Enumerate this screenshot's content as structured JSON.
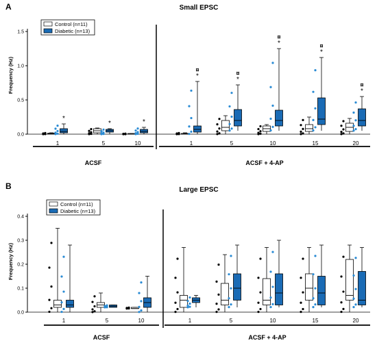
{
  "chart_data": [
    {
      "panel": "A",
      "title": "Small EPSC",
      "type": "box",
      "ylabel": "Frequency (Hz)",
      "ylim": [
        0,
        1.5
      ],
      "yticks": [
        0.0,
        0.5,
        1.0,
        1.5
      ],
      "ytick_labels": [
        "0.0",
        "0.5",
        "1.0",
        "1.5"
      ],
      "series": [
        {
          "name": "Control",
          "n_label": "(n=11)",
          "color": "#ffffff",
          "legend": "Control (n=11)"
        },
        {
          "name": "Diabetic",
          "n_label": "(n=13)",
          "color": "#1a6bb5",
          "legend": "Diabetic (n=13)"
        }
      ],
      "groups": [
        {
          "label": "ACSF",
          "categories": [
            "1",
            "5",
            "10"
          ]
        },
        {
          "label": "ACSF + 4-AP",
          "categories": [
            "1",
            "5",
            "10",
            "15",
            "20"
          ]
        }
      ],
      "boxes": [
        {
          "group": 0,
          "cat": 0,
          "series": "Control",
          "min": 0,
          "q1": 0,
          "med": 0.01,
          "q3": 0.015,
          "max": 0.02
        },
        {
          "group": 0,
          "cat": 0,
          "series": "Diabetic",
          "min": 0,
          "q1": 0.02,
          "med": 0.04,
          "q3": 0.08,
          "max": 0.15,
          "sig": "*"
        },
        {
          "group": 0,
          "cat": 1,
          "series": "Control",
          "min": 0,
          "q1": 0.02,
          "med": 0.05,
          "q3": 0.08,
          "max": 0.09
        },
        {
          "group": 0,
          "cat": 1,
          "series": "Diabetic",
          "min": 0,
          "q1": 0.03,
          "med": 0.05,
          "q3": 0.07,
          "max": 0.08,
          "sig": "*"
        },
        {
          "group": 0,
          "cat": 2,
          "series": "Control",
          "min": 0,
          "q1": 0,
          "med": 0,
          "q3": 0.01,
          "max": 0.01
        },
        {
          "group": 0,
          "cat": 2,
          "series": "Diabetic",
          "min": 0,
          "q1": 0.02,
          "med": 0.04,
          "q3": 0.07,
          "max": 0.1,
          "sig": "*"
        },
        {
          "group": 1,
          "cat": 0,
          "series": "Control",
          "min": 0,
          "q1": 0,
          "med": 0.01,
          "q3": 0.01,
          "max": 0.02
        },
        {
          "group": 1,
          "cat": 0,
          "series": "Diabetic",
          "min": 0,
          "q1": 0.03,
          "med": 0.07,
          "q3": 0.12,
          "max": 0.77,
          "sig": "*",
          "sig2": "¤"
        },
        {
          "group": 1,
          "cat": 1,
          "series": "Control",
          "min": 0,
          "q1": 0.05,
          "med": 0.1,
          "q3": 0.2,
          "max": 0.27
        },
        {
          "group": 1,
          "cat": 1,
          "series": "Diabetic",
          "min": 0.05,
          "q1": 0.12,
          "med": 0.2,
          "q3": 0.36,
          "max": 0.72,
          "sig": "*",
          "sig2": "¤"
        },
        {
          "group": 1,
          "cat": 2,
          "series": "Control",
          "min": 0,
          "q1": 0.04,
          "med": 0.08,
          "q3": 0.12,
          "max": 0.14
        },
        {
          "group": 1,
          "cat": 2,
          "series": "Diabetic",
          "min": 0.05,
          "q1": 0.12,
          "med": 0.2,
          "q3": 0.35,
          "max": 1.25,
          "sig": "*",
          "sig2": "¤"
        },
        {
          "group": 1,
          "cat": 3,
          "series": "Control",
          "min": 0,
          "q1": 0.04,
          "med": 0.08,
          "q3": 0.14,
          "max": 0.25
        },
        {
          "group": 1,
          "cat": 3,
          "series": "Diabetic",
          "min": 0.05,
          "q1": 0.14,
          "med": 0.22,
          "q3": 0.53,
          "max": 1.12,
          "sig": "*",
          "sig2": "¤"
        },
        {
          "group": 1,
          "cat": 4,
          "series": "Control",
          "min": 0,
          "q1": 0.04,
          "med": 0.1,
          "q3": 0.16,
          "max": 0.23
        },
        {
          "group": 1,
          "cat": 4,
          "series": "Diabetic",
          "min": 0.05,
          "q1": 0.12,
          "med": 0.2,
          "q3": 0.37,
          "max": 0.55,
          "sig": "*",
          "sig2": "¤"
        }
      ]
    },
    {
      "panel": "B",
      "title": "Large EPSC",
      "type": "box",
      "ylabel": "Frequency (Hz)",
      "ylim": [
        0,
        0.4
      ],
      "yticks": [
        0.0,
        0.1,
        0.2,
        0.3,
        0.4
      ],
      "ytick_labels": [
        "0.0",
        "0.1",
        "0.2",
        "0.3",
        "0.4"
      ],
      "series": [
        {
          "name": "Control",
          "n_label": "(n=11)",
          "color": "#ffffff",
          "legend": "Control (n=11)"
        },
        {
          "name": "Diabetic",
          "n_label": "(n=13)",
          "color": "#1a6bb5",
          "legend": "Diabetic (n=13)"
        }
      ],
      "groups": [
        {
          "label": "ACSF",
          "categories": [
            "1",
            "5",
            "10"
          ]
        },
        {
          "label": "ACSF + 4-AP",
          "categories": [
            "1",
            "5",
            "10",
            "15",
            "20"
          ]
        }
      ],
      "boxes": [
        {
          "group": 0,
          "cat": 0,
          "series": "Control",
          "min": 0,
          "q1": 0.02,
          "med": 0.03,
          "q3": 0.05,
          "max": 0.35
        },
        {
          "group": 0,
          "cat": 0,
          "series": "Diabetic",
          "min": 0,
          "q1": 0.02,
          "med": 0.03,
          "q3": 0.05,
          "max": 0.28
        },
        {
          "group": 0,
          "cat": 1,
          "series": "Control",
          "min": 0,
          "q1": 0.02,
          "med": 0.03,
          "q3": 0.04,
          "max": 0.08
        },
        {
          "group": 0,
          "cat": 1,
          "series": "Diabetic",
          "min": 0.02,
          "q1": 0.02,
          "med": 0.025,
          "q3": 0.03,
          "max": 0.03
        },
        {
          "group": 0,
          "cat": 2,
          "series": "Control",
          "min": 0.015,
          "q1": 0.015,
          "med": 0.015,
          "q3": 0.02,
          "max": 0.02
        },
        {
          "group": 0,
          "cat": 2,
          "series": "Diabetic",
          "min": 0,
          "q1": 0.02,
          "med": 0.04,
          "q3": 0.06,
          "max": 0.15
        },
        {
          "group": 1,
          "cat": 0,
          "series": "Control",
          "min": 0,
          "q1": 0.02,
          "med": 0.05,
          "q3": 0.07,
          "max": 0.27
        },
        {
          "group": 1,
          "cat": 0,
          "series": "Diabetic",
          "min": 0.02,
          "q1": 0.04,
          "med": 0.05,
          "q3": 0.06,
          "max": 0.07
        },
        {
          "group": 1,
          "cat": 1,
          "series": "Control",
          "min": 0,
          "q1": 0.03,
          "med": 0.05,
          "q3": 0.12,
          "max": 0.24
        },
        {
          "group": 1,
          "cat": 1,
          "series": "Diabetic",
          "min": 0.02,
          "q1": 0.05,
          "med": 0.1,
          "q3": 0.16,
          "max": 0.28
        },
        {
          "group": 1,
          "cat": 2,
          "series": "Control",
          "min": 0,
          "q1": 0.03,
          "med": 0.05,
          "q3": 0.14,
          "max": 0.27
        },
        {
          "group": 1,
          "cat": 2,
          "series": "Diabetic",
          "min": 0.02,
          "q1": 0.03,
          "med": 0.08,
          "q3": 0.16,
          "max": 0.3
        },
        {
          "group": 1,
          "cat": 3,
          "series": "Control",
          "min": 0,
          "q1": 0.05,
          "med": 0.1,
          "q3": 0.16,
          "max": 0.27
        },
        {
          "group": 1,
          "cat": 3,
          "series": "Diabetic",
          "min": 0.02,
          "q1": 0.03,
          "med": 0.08,
          "q3": 0.15,
          "max": 0.28
        },
        {
          "group": 1,
          "cat": 4,
          "series": "Control",
          "min": 0,
          "q1": 0.05,
          "med": 0.07,
          "q3": 0.22,
          "max": 0.28
        },
        {
          "group": 1,
          "cat": 4,
          "series": "Diabetic",
          "min": 0.02,
          "q1": 0.03,
          "med": 0.05,
          "q3": 0.17,
          "max": 0.27
        }
      ]
    }
  ]
}
